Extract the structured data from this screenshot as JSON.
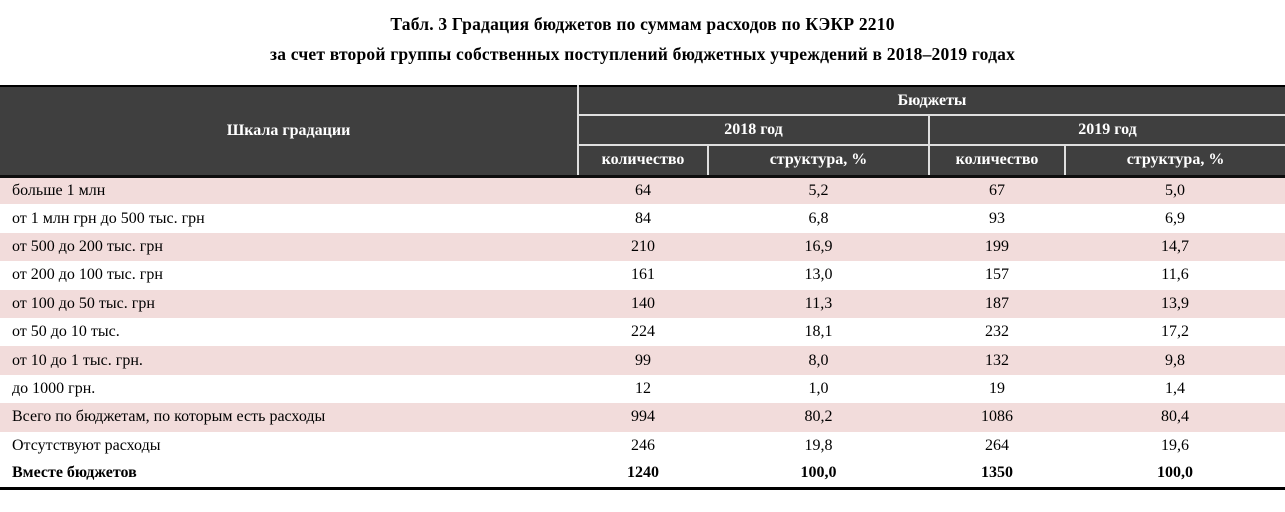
{
  "title": {
    "line1": "Табл. 3 Градация бюджетов по суммам расходов по КЭКР 2210",
    "line2": "за счет второй группы собственных поступлений бюджетных учреждений в 2018–2019 годах"
  },
  "table": {
    "header": {
      "scale_label": "Шкала градации",
      "budgets_label": "Бюджеты",
      "year_2018": "2018 год",
      "year_2019": "2019 год",
      "subcolumns": [
        "количество",
        "структура, %",
        "количество",
        "структура, %"
      ]
    },
    "rows": [
      {
        "label": "больше 1 млн",
        "values": [
          "64",
          "5,2",
          "67",
          "5,0"
        ],
        "shaded": true,
        "bold": false
      },
      {
        "label": "от 1 млн грн до 500 тыс. грн",
        "values": [
          "84",
          "6,8",
          "93",
          "6,9"
        ],
        "shaded": false,
        "bold": false
      },
      {
        "label": "от 500 до 200 тыс. грн",
        "values": [
          "210",
          "16,9",
          "199",
          "14,7"
        ],
        "shaded": true,
        "bold": false
      },
      {
        "label": "от 200 до 100 тыс. грн",
        "values": [
          "161",
          "13,0",
          "157",
          "11,6"
        ],
        "shaded": false,
        "bold": false
      },
      {
        "label": "от 100 до 50 тыс. грн",
        "values": [
          "140",
          "11,3",
          "187",
          "13,9"
        ],
        "shaded": true,
        "bold": false
      },
      {
        "label": "от 50 до 10 тыс.",
        "values": [
          "224",
          "18,1",
          "232",
          "17,2"
        ],
        "shaded": false,
        "bold": false
      },
      {
        "label": "от 10 до 1 тыс. грн.",
        "values": [
          "99",
          "8,0",
          "132",
          "9,8"
        ],
        "shaded": true,
        "bold": false
      },
      {
        "label": "до 1000 грн.",
        "values": [
          "12",
          "1,0",
          "19",
          "1,4"
        ],
        "shaded": false,
        "bold": false
      },
      {
        "label": "Всего по бюджетам, по которым есть расходы",
        "values": [
          "994",
          "80,2",
          "1086",
          "80,4"
        ],
        "shaded": true,
        "bold": false
      },
      {
        "label": "Отсутствуют расходы",
        "values": [
          "246",
          "19,8",
          "264",
          "19,6"
        ],
        "shaded": false,
        "bold": false
      },
      {
        "label": "Вместе бюджетов",
        "values": [
          "1240",
          "100,0",
          "1350",
          "100,0"
        ],
        "shaded": false,
        "bold": true
      }
    ]
  },
  "colors": {
    "header_bg": "#3F3F3F",
    "header_text": "#FFFFFF",
    "shaded_row_bg": "#F2DCDB",
    "header_divider": "#DFDFDF",
    "border_black": "#000000",
    "title_text": "#000000"
  }
}
